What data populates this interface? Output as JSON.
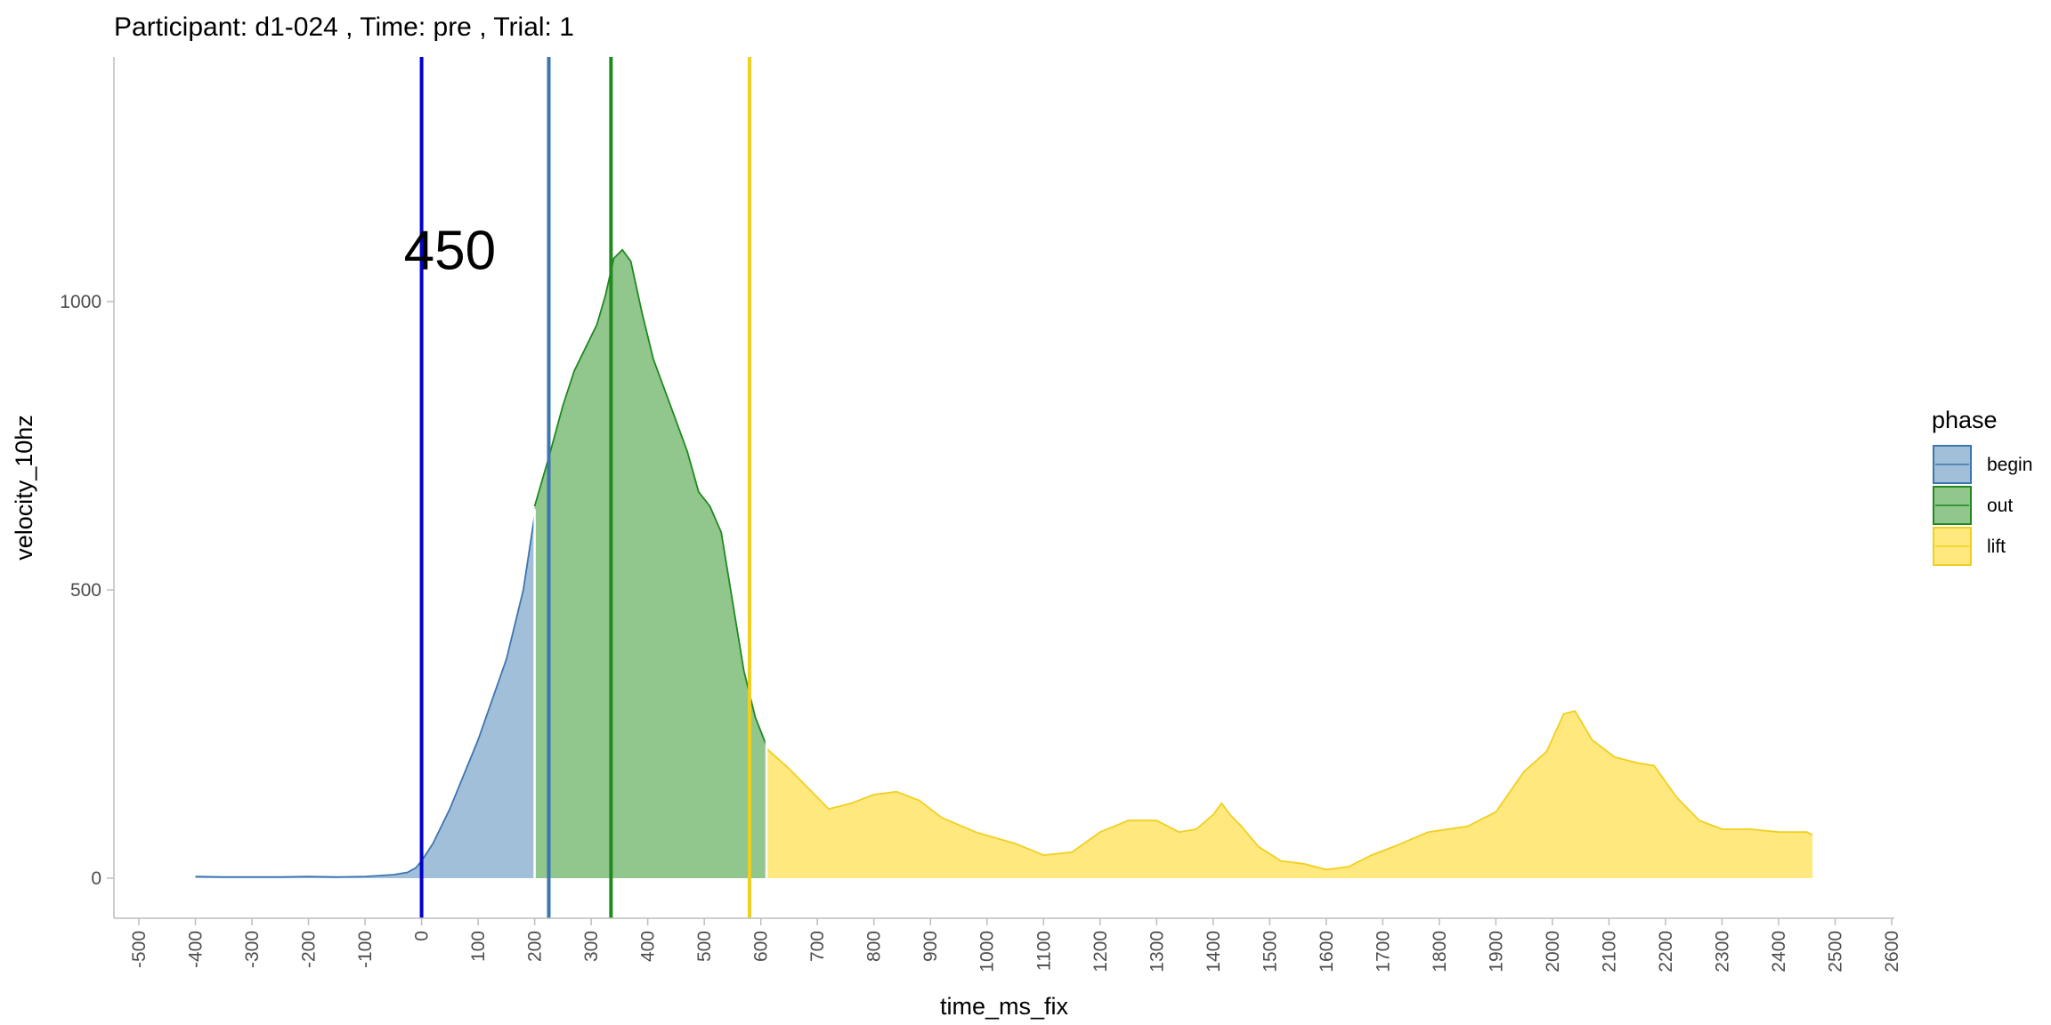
{
  "chart_data": {
    "type": "area",
    "title": "Participant:  d1-024 , Time: pre , Trial:  1",
    "xlabel": "time_ms_fix",
    "ylabel": "velocity_10hz",
    "xlim": [
      -500,
      2600
    ],
    "ylim": [
      0,
      1300
    ],
    "x_ticks": [
      -500,
      -400,
      -300,
      -200,
      -100,
      0,
      100,
      200,
      300,
      400,
      500,
      600,
      700,
      800,
      900,
      1000,
      1100,
      1200,
      1300,
      1400,
      1500,
      1600,
      1700,
      1800,
      1900,
      2000,
      2100,
      2200,
      2300,
      2400,
      2500,
      2600
    ],
    "x_tick_labels": [
      "-500",
      "-400",
      "-300",
      "-200",
      "-100",
      "0",
      "100",
      "200",
      "300",
      "400",
      "500",
      "600",
      "700",
      "800",
      "900",
      "1000",
      "1100",
      "1200",
      "1300",
      "1400",
      "1500",
      "1600",
      "1700",
      "1800",
      "1900",
      "2000",
      "2100",
      "2200",
      "2300",
      "2400",
      "2500",
      "2600"
    ],
    "y_ticks": [
      0,
      500,
      1000
    ],
    "y_tick_labels": [
      "0",
      "500",
      "1000"
    ],
    "grid": false,
    "legend": {
      "title": "phase",
      "position": "right"
    },
    "series": [
      {
        "name": "begin",
        "fill": "#A2BFDA",
        "stroke": "#3C76AF",
        "points": [
          [
            -400,
            3
          ],
          [
            -350,
            2
          ],
          [
            -300,
            2
          ],
          [
            -250,
            2
          ],
          [
            -200,
            3
          ],
          [
            -150,
            2
          ],
          [
            -100,
            3
          ],
          [
            -50,
            6
          ],
          [
            -25,
            10
          ],
          [
            -10,
            18
          ],
          [
            0,
            30
          ],
          [
            20,
            60
          ],
          [
            50,
            120
          ],
          [
            100,
            240
          ],
          [
            150,
            380
          ],
          [
            180,
            500
          ],
          [
            200,
            630
          ]
        ]
      },
      {
        "name": "out",
        "fill": "#91C68D",
        "stroke": "#1F8A1F",
        "points": [
          [
            200,
            645
          ],
          [
            225,
            730
          ],
          [
            250,
            820
          ],
          [
            270,
            880
          ],
          [
            290,
            920
          ],
          [
            310,
            960
          ],
          [
            325,
            1010
          ],
          [
            340,
            1075
          ],
          [
            355,
            1090
          ],
          [
            370,
            1070
          ],
          [
            390,
            980
          ],
          [
            410,
            900
          ],
          [
            440,
            820
          ],
          [
            470,
            740
          ],
          [
            490,
            670
          ],
          [
            510,
            645
          ],
          [
            530,
            600
          ],
          [
            550,
            480
          ],
          [
            570,
            360
          ],
          [
            590,
            280
          ],
          [
            610,
            230
          ]
        ]
      },
      {
        "name": "lift",
        "fill": "#FFE97F",
        "stroke": "#F2CF1E",
        "points": [
          [
            610,
            225
          ],
          [
            650,
            190
          ],
          [
            700,
            140
          ],
          [
            720,
            120
          ],
          [
            760,
            130
          ],
          [
            800,
            145
          ],
          [
            840,
            150
          ],
          [
            880,
            135
          ],
          [
            920,
            105
          ],
          [
            980,
            80
          ],
          [
            1050,
            60
          ],
          [
            1100,
            40
          ],
          [
            1150,
            45
          ],
          [
            1200,
            80
          ],
          [
            1250,
            100
          ],
          [
            1300,
            100
          ],
          [
            1340,
            80
          ],
          [
            1370,
            85
          ],
          [
            1400,
            110
          ],
          [
            1415,
            130
          ],
          [
            1430,
            110
          ],
          [
            1450,
            90
          ],
          [
            1480,
            55
          ],
          [
            1520,
            30
          ],
          [
            1560,
            25
          ],
          [
            1600,
            15
          ],
          [
            1640,
            20
          ],
          [
            1680,
            40
          ],
          [
            1720,
            55
          ],
          [
            1780,
            80
          ],
          [
            1850,
            90
          ],
          [
            1900,
            115
          ],
          [
            1950,
            185
          ],
          [
            1990,
            220
          ],
          [
            2020,
            285
          ],
          [
            2040,
            290
          ],
          [
            2070,
            240
          ],
          [
            2110,
            210
          ],
          [
            2150,
            200
          ],
          [
            2180,
            195
          ],
          [
            2220,
            140
          ],
          [
            2260,
            100
          ],
          [
            2300,
            85
          ],
          [
            2350,
            85
          ],
          [
            2400,
            80
          ],
          [
            2450,
            80
          ],
          [
            2460,
            75
          ]
        ]
      }
    ],
    "vlines": [
      {
        "x": 0,
        "color": "#0000CC"
      },
      {
        "x": 225,
        "color": "#3C76AF"
      },
      {
        "x": 335,
        "color": "#1F8A1F"
      },
      {
        "x": 580,
        "color": "#F2CF1E"
      }
    ],
    "annotations": [
      {
        "text": "450",
        "x": 50,
        "y": 1090
      }
    ]
  }
}
